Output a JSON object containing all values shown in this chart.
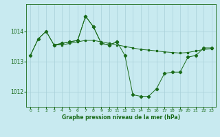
{
  "title": "Graphe pression niveau de la mer (hPa)",
  "background_color": "#c8eaf0",
  "grid_color": "#a8d0d8",
  "line_color": "#1a6b1a",
  "xlim": [
    -0.5,
    23.5
  ],
  "ylim": [
    1011.5,
    1014.9
  ],
  "yticks": [
    1012,
    1013,
    1014
  ],
  "xticks": [
    0,
    1,
    2,
    3,
    4,
    5,
    6,
    7,
    8,
    9,
    10,
    11,
    12,
    13,
    14,
    15,
    16,
    17,
    18,
    19,
    20,
    21,
    22,
    23
  ],
  "series1_x": [
    0,
    1,
    2,
    3,
    4,
    5,
    6,
    7,
    8,
    9,
    10,
    11,
    12,
    13,
    14,
    15,
    16,
    17,
    18,
    19,
    20,
    21,
    22,
    23
  ],
  "series1_y": [
    1013.2,
    1013.75,
    1014.0,
    1013.55,
    1013.55,
    1013.6,
    1013.65,
    1013.7,
    1013.7,
    1013.65,
    1013.6,
    1013.55,
    1013.5,
    1013.45,
    1013.4,
    1013.38,
    1013.35,
    1013.32,
    1013.3,
    1013.28,
    1013.3,
    1013.35,
    1013.4,
    1013.42
  ],
  "series2_x": [
    0,
    1,
    2,
    3,
    4,
    5,
    6,
    7,
    8,
    9,
    10,
    11,
    12,
    13,
    14,
    15,
    16,
    17,
    18,
    19,
    20,
    21,
    22,
    23
  ],
  "series2_y": [
    1013.2,
    1013.75,
    1014.0,
    1013.55,
    1013.6,
    1013.65,
    1013.7,
    1014.5,
    1014.15,
    1013.6,
    1013.55,
    1013.65,
    1013.2,
    1011.9,
    1011.85,
    1011.85,
    1012.1,
    1012.6,
    1012.65,
    1012.65,
    1013.15,
    1013.2,
    1013.45,
    1013.45
  ],
  "series3_x": [
    3,
    4,
    5,
    6,
    7,
    8,
    9,
    10,
    11
  ],
  "series3_y": [
    1013.55,
    1013.6,
    1013.65,
    1013.7,
    1014.5,
    1014.15,
    1013.6,
    1013.55,
    1013.65
  ]
}
